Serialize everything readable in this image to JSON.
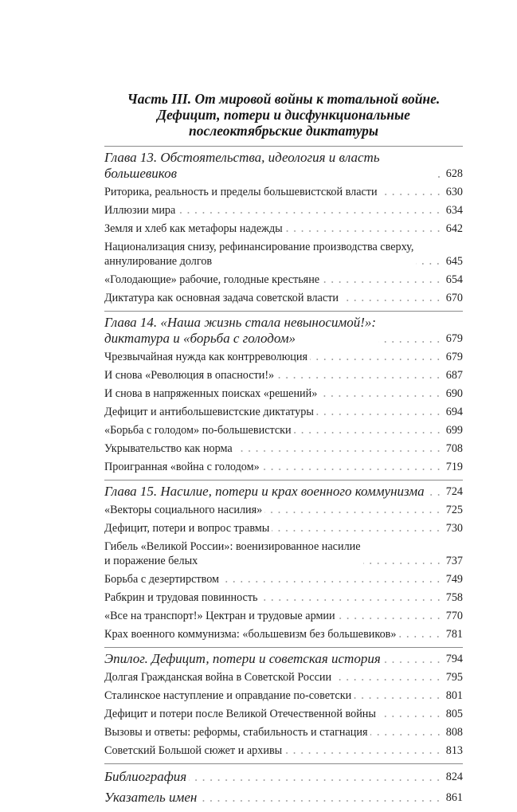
{
  "title": [
    "Часть III. От мировой войны к тотальной войне.",
    "Дефицит, потери и дисфункциональные",
    "послеоктябрьские диктатуры"
  ],
  "sections": [
    {
      "heading": {
        "lines": [
          "Глава 13. Обстоятельства, идеология и власть большевиков"
        ],
        "page": "628"
      },
      "items": [
        {
          "lines": [
            "Риторика, реальность и пределы большевистской власти"
          ],
          "page": "630"
        },
        {
          "lines": [
            "Иллюзии мира"
          ],
          "page": "634"
        },
        {
          "lines": [
            "Земля и хлеб как метафоры надежды"
          ],
          "page": "642"
        },
        {
          "lines": [
            "Национализация снизу, рефинансирование производства сверху,",
            "аннулирование долгов"
          ],
          "page": "645"
        },
        {
          "lines": [
            "«Голодающие» рабочие, голодные крестьяне"
          ],
          "page": "654"
        },
        {
          "lines": [
            "Диктатура как основная задача советской власти"
          ],
          "page": "670"
        }
      ]
    },
    {
      "heading": {
        "lines": [
          "Глава 14. «Наша жизнь стала невыносимой!»:",
          "диктатура и «борьба с голодом»"
        ],
        "page": "679"
      },
      "items": [
        {
          "lines": [
            "Чрезвычайная нужда как контрреволюция"
          ],
          "page": "679"
        },
        {
          "lines": [
            "И снова «Революция в опасности!»"
          ],
          "page": "687"
        },
        {
          "lines": [
            "И снова в напряженных поисках «решений»"
          ],
          "page": "690"
        },
        {
          "lines": [
            "Дефицит и антибольшевистские диктатуры"
          ],
          "page": "694"
        },
        {
          "lines": [
            "«Борьба с голодом» по-большевистски"
          ],
          "page": "699"
        },
        {
          "lines": [
            "Укрывательство как норма"
          ],
          "page": "708"
        },
        {
          "lines": [
            "Проигранная «война с голодом»"
          ],
          "page": "719"
        }
      ]
    },
    {
      "heading": {
        "lines": [
          "Глава 15. Насилие, потери и крах военного коммунизма"
        ],
        "page": "724"
      },
      "items": [
        {
          "lines": [
            "«Векторы социального насилия»"
          ],
          "page": "725"
        },
        {
          "lines": [
            "Дефицит, потери и вопрос травмы"
          ],
          "page": "730"
        },
        {
          "lines": [
            "Гибель «Великой России»: военизированное насилие",
            "и поражение белых"
          ],
          "page": "737"
        },
        {
          "lines": [
            "Борьба с дезертирством"
          ],
          "page": "749"
        },
        {
          "lines": [
            "Рабкрин и трудовая повинность"
          ],
          "page": "758"
        },
        {
          "lines": [
            "«Все на транспорт!» Цектран и трудовые армии"
          ],
          "page": "770"
        },
        {
          "lines": [
            "Крах военного коммунизма: «большевизм без большевиков»"
          ],
          "page": "781"
        }
      ]
    },
    {
      "heading": {
        "lines": [
          "Эпилог. Дефицит, потери и советская история"
        ],
        "page": "794"
      },
      "items": [
        {
          "lines": [
            "Долгая Гражданская война в Советской России"
          ],
          "page": "795"
        },
        {
          "lines": [
            "Сталинское наступление и оправдание по-советски"
          ],
          "page": "801"
        },
        {
          "lines": [
            "Дефицит и потери после Великой Отечественной войны"
          ],
          "page": "805"
        },
        {
          "lines": [
            "Вызовы и ответы: реформы, стабильность и стагнация"
          ],
          "page": "808"
        },
        {
          "lines": [
            "Советский Большой сюжет и архивы"
          ],
          "page": "813"
        }
      ]
    }
  ],
  "tail": [
    {
      "lines": [
        "Библиография"
      ],
      "page": "824"
    },
    {
      "lines": [
        "Указатель имен"
      ],
      "page": "861"
    }
  ]
}
